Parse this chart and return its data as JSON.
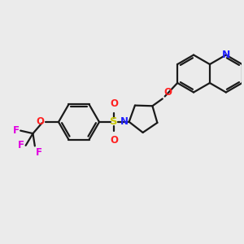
{
  "bg_color": "#ebebeb",
  "bond_color": "#1a1a1a",
  "n_color": "#2020ff",
  "o_color": "#ff2020",
  "f_color": "#e000e0",
  "s_color": "#c8c800",
  "lw": 1.6,
  "figsize": [
    3.0,
    3.0
  ],
  "dpi": 100,
  "xlim": [
    0,
    10
  ],
  "ylim": [
    0,
    10
  ]
}
